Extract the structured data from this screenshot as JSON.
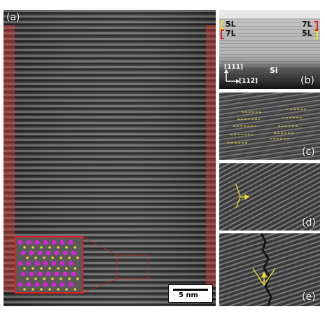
{
  "figure": {
    "panel_labels": {
      "a": "(a)",
      "b": "(b)",
      "c": "(c)",
      "d": "(d)",
      "e": "(e)"
    },
    "scale_bar": "5 nm",
    "panel_b": {
      "left_top": "5L",
      "left_bottom": "7L",
      "right_top": "7L",
      "right_bottom": "5L",
      "direction_vertical": "[111]",
      "direction_horizontal": "[112̄]",
      "substrate": "Si"
    },
    "colors": {
      "overlay_red": "#e0403c",
      "annotation_yellow": "#f2e030",
      "atom_magenta": "#e020e0",
      "atom_yellow": "#e6d82a",
      "inset_border": "#e02020",
      "bracket_red": "#e02020"
    }
  }
}
